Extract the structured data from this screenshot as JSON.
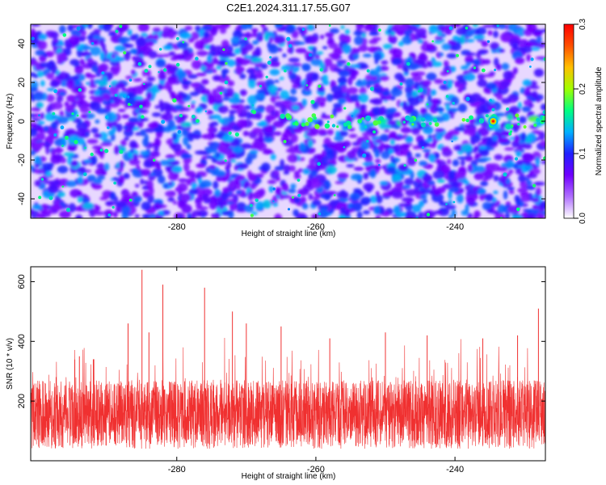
{
  "title": "C2E1.2024.311.17.55.G07",
  "chart_data": [
    {
      "type": "heatmap",
      "xlabel": "Height of straight line (km)",
      "ylabel": "Frequency (Hz)",
      "xlim": [
        -301,
        -227
      ],
      "ylim": [
        -50,
        50
      ],
      "xticks": [
        -280,
        -260,
        -240
      ],
      "yticks": [
        -40,
        -20,
        0,
        20,
        40
      ],
      "colorbar": {
        "label": "Normalized spectral amplitude",
        "range": [
          0.0,
          0.3
        ],
        "ticks": [
          0.0,
          0.1,
          0.2,
          0.3
        ],
        "colors": [
          "#ffffff",
          "#b070ff",
          "#7000ff",
          "#2020ff",
          "#00b0ff",
          "#00ff80",
          "#a0ff00",
          "#ffc000",
          "#ff5000",
          "#ff0000"
        ]
      },
      "peak": {
        "x": -234.5,
        "y": 0,
        "value": 0.3
      },
      "noise_band": {
        "freq": 0,
        "description": ""
      }
    },
    {
      "type": "line",
      "xlabel": "Height of straight line (km)",
      "ylabel": "SNR (10 * v/v)",
      "xlim": [
        -301,
        -227
      ],
      "ylim": [
        0,
        650
      ],
      "xticks": [
        -280,
        -260,
        -240
      ],
      "yticks": [
        200,
        400,
        600
      ],
      "series_color": "#f03030",
      "typical_range": [
        80,
        250
      ],
      "spikes": [
        {
          "x": -294,
          "y": 350
        },
        {
          "x": -292,
          "y": 340
        },
        {
          "x": -287,
          "y": 460
        },
        {
          "x": -285,
          "y": 640
        },
        {
          "x": -284,
          "y": 430
        },
        {
          "x": -282,
          "y": 590
        },
        {
          "x": -276,
          "y": 580
        },
        {
          "x": -272,
          "y": 500
        },
        {
          "x": -270,
          "y": 460
        },
        {
          "x": -265,
          "y": 450
        },
        {
          "x": -258,
          "y": 410
        },
        {
          "x": -250,
          "y": 430
        },
        {
          "x": -244,
          "y": 420
        },
        {
          "x": -236,
          "y": 410
        },
        {
          "x": -231,
          "y": 420
        },
        {
          "x": -228,
          "y": 510
        }
      ]
    }
  ]
}
